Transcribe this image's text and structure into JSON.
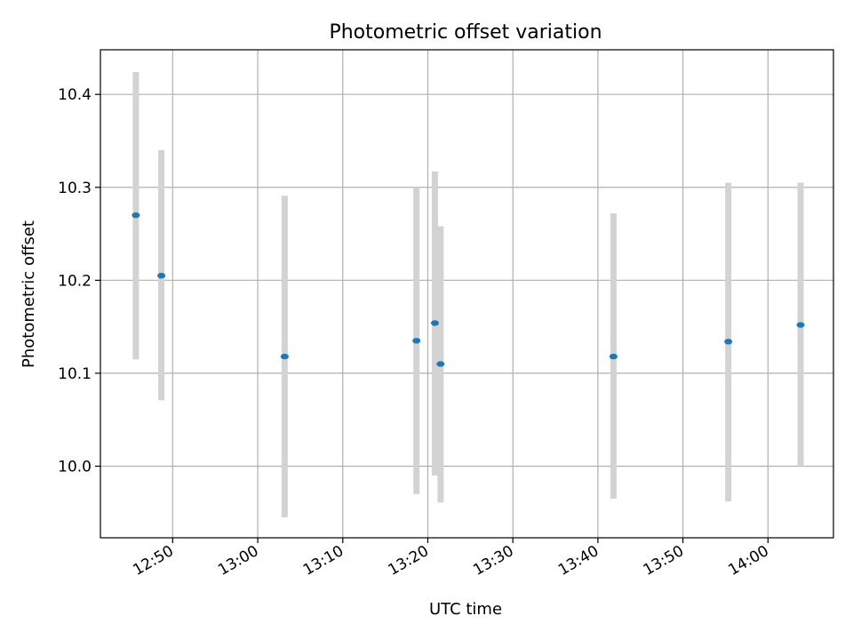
{
  "chart_data": {
    "type": "scatter",
    "title": "Photometric offset variation",
    "xlabel": "UTC time",
    "ylabel": "Photometric offset",
    "x_is_time": true,
    "xlim": [
      "12:41.5",
      "14:07.7"
    ],
    "ylim": [
      9.923,
      10.448
    ],
    "xticks": [
      "12:50",
      "13:00",
      "13:10",
      "13:20",
      "13:30",
      "13:40",
      "13:50",
      "14:00"
    ],
    "yticks": [
      10.0,
      10.1,
      10.2,
      10.3,
      10.4
    ],
    "ytick_labels": [
      "10.0",
      "10.1",
      "10.2",
      "10.3",
      "10.4"
    ],
    "grid": true,
    "point_color": "#1f77b4",
    "errorbar_color": "#d3d3d3",
    "points": [
      {
        "x": "12:45:40",
        "y": 10.27,
        "ylow": 10.115,
        "yhigh": 10.424
      },
      {
        "x": "12:48:40",
        "y": 10.205,
        "ylow": 10.071,
        "yhigh": 10.34
      },
      {
        "x": "13:03:10",
        "y": 10.118,
        "ylow": 9.945,
        "yhigh": 10.291
      },
      {
        "x": "13:18:40",
        "y": 10.135,
        "ylow": 9.97,
        "yhigh": 10.3
      },
      {
        "x": "13:20:50",
        "y": 10.154,
        "ylow": 9.99,
        "yhigh": 10.317
      },
      {
        "x": "13:21:30",
        "y": 10.11,
        "ylow": 9.961,
        "yhigh": 10.258
      },
      {
        "x": "13:41:50",
        "y": 10.118,
        "ylow": 9.965,
        "yhigh": 10.272
      },
      {
        "x": "13:55:20",
        "y": 10.134,
        "ylow": 9.962,
        "yhigh": 10.305
      },
      {
        "x": "14:03:50",
        "y": 10.152,
        "ylow": 10.0,
        "yhigh": 10.305
      }
    ]
  }
}
